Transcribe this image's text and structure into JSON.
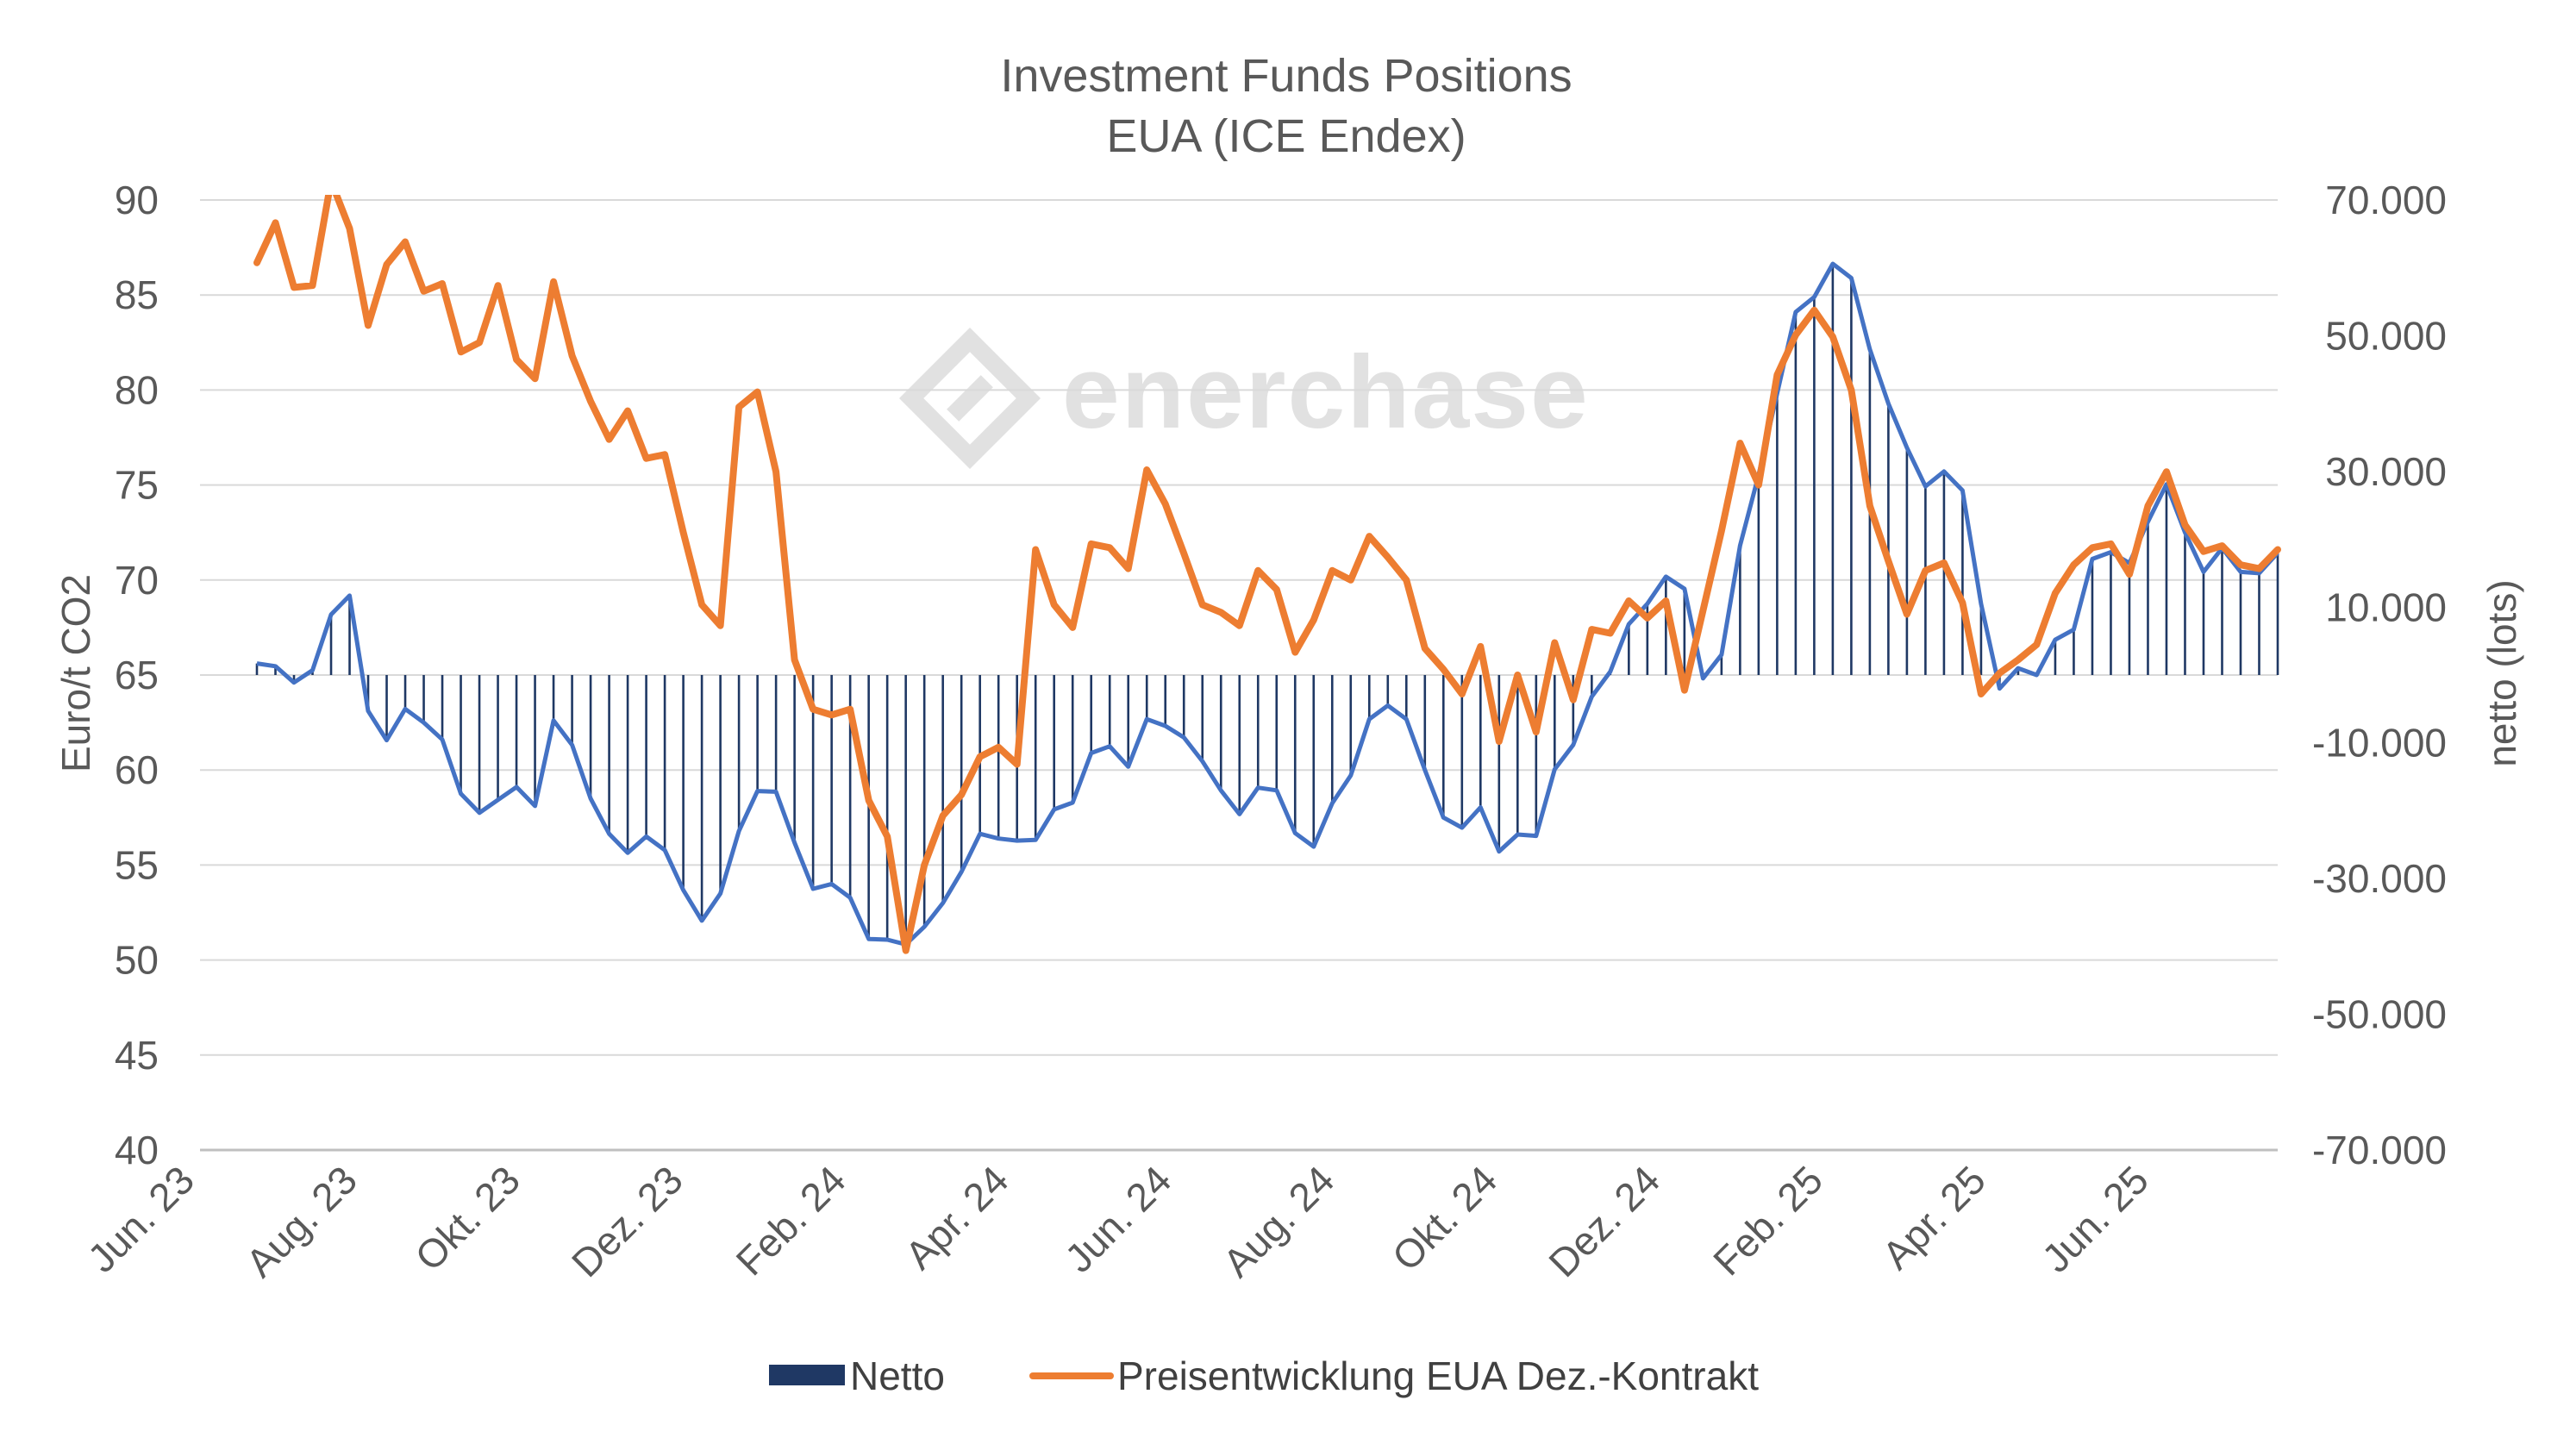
{
  "chart_data": {
    "type": "bar",
    "title": "Investment Funds Positions",
    "subtitle": "EUA (ICE Endex)",
    "watermark": "enerchase",
    "x_tick_labels": [
      "Jun. 23",
      "Aug. 23",
      "Okt. 23",
      "Dez. 23",
      "Feb. 24",
      "Apr. 24",
      "Jun. 24",
      "Aug. 24",
      "Okt. 24",
      "Dez. 24",
      "Feb. 25",
      "Apr. 25",
      "Jun. 25"
    ],
    "left_axis": {
      "label": "Euro/t CO2",
      "range": [
        40,
        90
      ],
      "ticks": [
        40,
        45,
        50,
        55,
        60,
        65,
        70,
        75,
        80,
        85,
        90
      ],
      "tick_labels": [
        "40",
        "45",
        "50",
        "55",
        "60",
        "65",
        "70",
        "75",
        "80",
        "85",
        "90"
      ]
    },
    "right_axis": {
      "label": "netto (lots)",
      "range": [
        -70000,
        70000
      ],
      "ticks": [
        -70000,
        -50000,
        -30000,
        -10000,
        10000,
        30000,
        50000,
        70000
      ],
      "tick_labels": [
        "-70.000",
        "-50.000",
        "-30.000",
        "-10.000",
        "10.000",
        "30.000",
        "50.000",
        "70.000"
      ]
    },
    "grid": true,
    "legend_position": "bottom",
    "legend": [
      "Netto",
      "Preisentwicklung EUA Dez.-Kontrakt"
    ],
    "colors": {
      "netto_bars": "#1f3864",
      "netto_line": "#4472c4",
      "price_line": "#ed7d31",
      "grid": "#d9d9d9",
      "text": "#595959"
    },
    "series": [
      {
        "name": "Netto",
        "axis": "right",
        "values": [
          1700,
          1300,
          -1100,
          700,
          8900,
          11700,
          -5300,
          -9600,
          -5000,
          -7000,
          -9500,
          -17500,
          -20300,
          -18400,
          -16500,
          -19300,
          -6700,
          -10300,
          -18200,
          -23400,
          -26200,
          -23800,
          -25800,
          -31700,
          -36200,
          -32200,
          -23000,
          -17100,
          -17200,
          -24700,
          -31500,
          -30800,
          -32800,
          -38900,
          -39000,
          -39700,
          -37100,
          -33600,
          -29000,
          -23400,
          -24100,
          -24400,
          -24300,
          -19800,
          -18800,
          -11500,
          -10500,
          -13500,
          -6500,
          -7500,
          -9200,
          -12700,
          -17000,
          -20500,
          -16600,
          -17000,
          -23300,
          -25300,
          -18900,
          -14800,
          -6500,
          -4500,
          -6500,
          -14000,
          -21000,
          -22500,
          -19500,
          -26000,
          -23500,
          -23700,
          -13900,
          -10300,
          -3200,
          500,
          7500,
          10500,
          14500,
          12700,
          -500,
          3000,
          19100,
          29500,
          41500,
          53500,
          55700,
          60600,
          58500,
          48000,
          40000,
          33500,
          27800,
          30000,
          27200,
          10500,
          -2000,
          1000,
          0,
          5200,
          6700,
          17100,
          18100,
          16500,
          22600,
          28100,
          21000,
          15200,
          18700,
          15200,
          15000,
          18000
        ],
        "style": "bars+line"
      },
      {
        "name": "Preisentwicklung EUA Dez.-Kontrakt",
        "axis": "left",
        "values": [
          86.7,
          88.8,
          85.4,
          85.5,
          91.0,
          88.5,
          83.4,
          86.6,
          87.8,
          85.2,
          85.6,
          82.0,
          82.5,
          85.5,
          81.6,
          80.6,
          85.7,
          81.8,
          79.4,
          77.4,
          78.9,
          76.4,
          76.6,
          72.5,
          68.7,
          67.6,
          79.1,
          79.9,
          75.7,
          65.8,
          63.2,
          62.9,
          63.2,
          58.4,
          56.5,
          50.5,
          55.0,
          57.6,
          58.7,
          60.7,
          61.2,
          60.3,
          71.6,
          68.7,
          67.5,
          71.9,
          71.7,
          70.6,
          75.8,
          74.0,
          71.4,
          68.7,
          68.3,
          67.6,
          70.5,
          69.5,
          66.2,
          67.9,
          70.5,
          70.0,
          72.3,
          71.2,
          70.0,
          66.4,
          65.3,
          64.0,
          66.5,
          61.5,
          65.0,
          62.0,
          66.7,
          63.7,
          67.4,
          67.2,
          68.9,
          68.0,
          68.9,
          64.2,
          68.4,
          72.6,
          77.2,
          75.0,
          80.8,
          82.9,
          84.2,
          82.8,
          80.0,
          73.9,
          71.0,
          68.2,
          70.5,
          70.9,
          68.8,
          64.0,
          65.1,
          65.8,
          66.6,
          69.3,
          70.8,
          71.7,
          71.9,
          70.3,
          73.9,
          75.7,
          72.9,
          71.5,
          71.8,
          70.8,
          70.6,
          71.6
        ]
      }
    ]
  }
}
